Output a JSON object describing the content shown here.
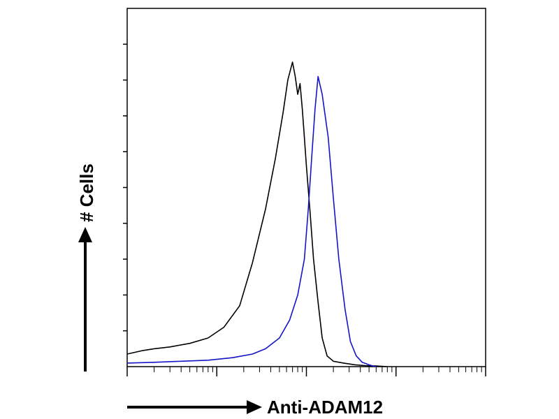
{
  "chart_data": {
    "type": "line",
    "title": "",
    "xlabel": "Anti-ADAM12",
    "ylabel": "# Cells",
    "xscale": "log",
    "xlim": [
      1,
      10000
    ],
    "ylim": [
      0,
      10
    ],
    "grid": false,
    "legend": "none",
    "series": [
      {
        "color": "#000000",
        "x": [
          1,
          1.5,
          2,
          3,
          5,
          8,
          12,
          18,
          25,
          35,
          45,
          55,
          62,
          70,
          75,
          80,
          85,
          90,
          95,
          100,
          110,
          120,
          135,
          150,
          170,
          200,
          260,
          350,
          450,
          600,
          800
        ],
        "y": [
          0.35,
          0.45,
          0.5,
          0.55,
          0.65,
          0.8,
          1.1,
          1.7,
          2.9,
          4.4,
          5.8,
          7.1,
          8.0,
          8.5,
          8.1,
          7.6,
          7.9,
          7.2,
          6.4,
          5.6,
          4.3,
          3.0,
          1.8,
          0.8,
          0.3,
          0.15,
          0.1,
          0.05,
          0.03,
          0.02,
          0.0
        ]
      },
      {
        "color": "#1414c8",
        "x": [
          1,
          2,
          4,
          8,
          15,
          25,
          35,
          50,
          65,
          80,
          95,
          105,
          115,
          125,
          135,
          150,
          175,
          200,
          230,
          270,
          310,
          360,
          420,
          500,
          550,
          600
        ],
        "y": [
          0.1,
          0.12,
          0.15,
          0.18,
          0.25,
          0.35,
          0.5,
          0.8,
          1.3,
          2.0,
          3.0,
          4.4,
          5.9,
          7.2,
          8.1,
          7.6,
          6.4,
          4.7,
          3.0,
          1.6,
          0.7,
          0.3,
          0.12,
          0.05,
          0.02,
          0.0
        ]
      }
    ]
  }
}
